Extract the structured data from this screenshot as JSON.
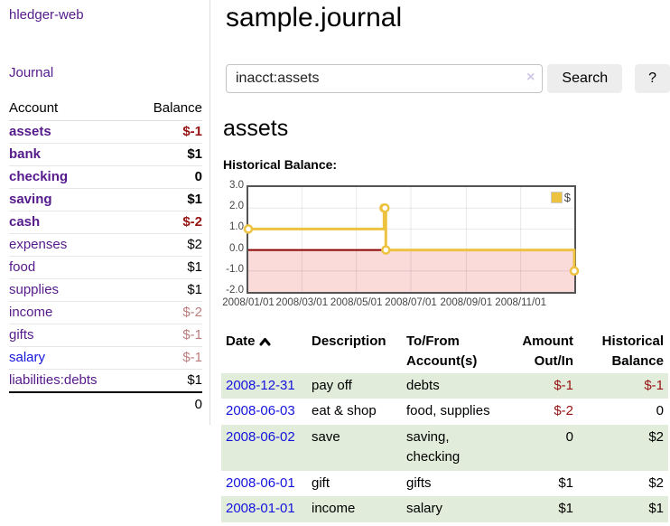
{
  "app": {
    "title": "hledger-web",
    "nav_journal": "Journal"
  },
  "sidebar": {
    "col_account": "Account",
    "col_balance": "Balance",
    "accounts": [
      {
        "name": "assets",
        "depth": 1,
        "balance": "$-1",
        "bold": true,
        "neg": "strong"
      },
      {
        "name": "bank",
        "depth": 2,
        "balance": "$1",
        "bold": true,
        "neg": "none"
      },
      {
        "name": "checking",
        "depth": 3,
        "balance": "0",
        "bold": true,
        "neg": "none"
      },
      {
        "name": "saving",
        "depth": 3,
        "balance": "$1",
        "bold": true,
        "neg": "none"
      },
      {
        "name": "cash",
        "depth": 2,
        "balance": "$-2",
        "bold": true,
        "neg": "strong"
      },
      {
        "name": "expenses",
        "depth": 1,
        "balance": "$2",
        "bold": false,
        "neg": "none"
      },
      {
        "name": "food",
        "depth": 2,
        "balance": "$1",
        "bold": false,
        "neg": "none"
      },
      {
        "name": "supplies",
        "depth": 2,
        "balance": "$1",
        "bold": false,
        "neg": "none"
      },
      {
        "name": "income",
        "depth": 1,
        "balance": "$-2",
        "bold": false,
        "neg": "soft"
      },
      {
        "name": "gifts",
        "depth": 2,
        "balance": "$-1",
        "bold": false,
        "neg": "soft"
      },
      {
        "name": "salary",
        "depth": 2,
        "balance": "$-1",
        "bold": false,
        "neg": "soft",
        "link": "blue"
      },
      {
        "name": "liabilities:debts",
        "depth": 1,
        "balance": "$1",
        "bold": false,
        "neg": "none"
      }
    ],
    "total": "0"
  },
  "header": {
    "title": "sample.journal"
  },
  "search": {
    "value": "inacct:assets",
    "clear_icon": "×",
    "button": "Search",
    "help_button": "?"
  },
  "account_page": {
    "heading": "assets",
    "chart_label": "Historical Balance:"
  },
  "chart_data": {
    "type": "line",
    "style": "steps",
    "title": "Historical Balance:",
    "series": [
      {
        "name": "$",
        "color": "#edc240",
        "points": [
          [
            "2008-01-01",
            1
          ],
          [
            "2008-06-01",
            2
          ],
          [
            "2008-06-02",
            2
          ],
          [
            "2008-06-03",
            0
          ],
          [
            "2008-12-31",
            -1
          ]
        ]
      }
    ],
    "xrange": [
      "2008-01-01",
      "2008-12-31"
    ],
    "ylim": [
      -2,
      3
    ],
    "yticks": [
      "3.0",
      "2.0",
      "1.0",
      "0.0",
      "-1.0",
      "-2.0"
    ],
    "xticks": [
      "2008/01/01",
      "2008/03/01",
      "2008/05/01",
      "2008/07/01",
      "2008/09/01",
      "2008/11/01"
    ],
    "grid": true,
    "legend_position": "top-right",
    "colors": {
      "negative_region": "#fbdada",
      "zero_line": "#8b0000",
      "grid": "rgba(0,0,0,0.09)",
      "border": "#545454"
    }
  },
  "register": {
    "columns": {
      "date": "Date",
      "description": "Description",
      "tofrom_line1": "To/From",
      "tofrom_line2": "Account(s)",
      "amount_line1": "Amount",
      "amount_line2": "Out/In",
      "balance_line1": "Historical",
      "balance_line2": "Balance"
    },
    "rows": [
      {
        "date": "2008-12-31",
        "description": "pay off",
        "accounts": "debts",
        "amount": "$-1",
        "amount_neg": true,
        "balance": "$-1",
        "balance_neg": true
      },
      {
        "date": "2008-06-03",
        "description": "eat & shop",
        "accounts": "food, supplies",
        "amount": "$-2",
        "amount_neg": true,
        "balance": "0",
        "balance_neg": false
      },
      {
        "date": "2008-06-02",
        "description": "save",
        "accounts": "saving, checking",
        "amount": "0",
        "amount_neg": false,
        "balance": "$2",
        "balance_neg": false
      },
      {
        "date": "2008-06-01",
        "description": "gift",
        "accounts": "gifts",
        "amount": "$1",
        "amount_neg": false,
        "balance": "$2",
        "balance_neg": false
      },
      {
        "date": "2008-01-01",
        "description": "income",
        "accounts": "salary",
        "amount": "$1",
        "amount_neg": false,
        "balance": "$1",
        "balance_neg": false
      }
    ]
  }
}
